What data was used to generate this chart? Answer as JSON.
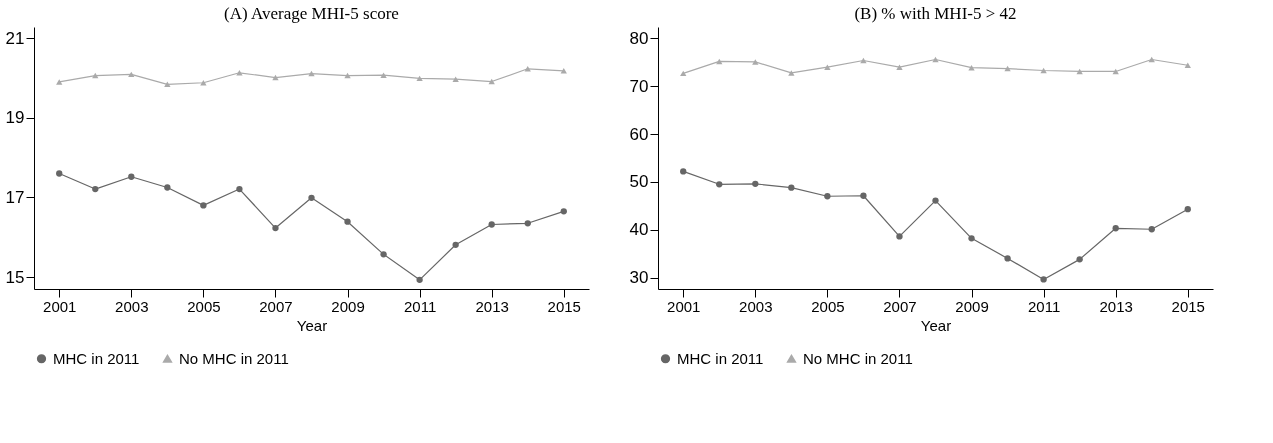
{
  "chart_data": [
    {
      "type": "line",
      "title": "(A) Average MHI-5 score",
      "xlabel": "Year",
      "x": [
        2001,
        2002,
        2003,
        2004,
        2005,
        2006,
        2007,
        2008,
        2009,
        2010,
        2011,
        2012,
        2013,
        2014,
        2015
      ],
      "xlim": [
        2000.3,
        2015.7
      ],
      "xticks": [
        2001,
        2003,
        2005,
        2007,
        2009,
        2011,
        2013,
        2015
      ],
      "ylim": [
        14.7,
        21.28
      ],
      "yticks": [
        15,
        17,
        19,
        21
      ],
      "grid": false,
      "legend": "bottom",
      "line_style": "solid",
      "series": [
        {
          "name": "MHC in 2011",
          "color": "#666666",
          "marker": "circle",
          "values": [
            17.6,
            17.21,
            17.52,
            17.25,
            16.8,
            17.21,
            16.23,
            16.99,
            16.39,
            15.57,
            14.93,
            15.81,
            16.32,
            16.35,
            16.65
          ]
        },
        {
          "name": "No MHC in 2011",
          "color": "#aaaaaa",
          "marker": "triangle",
          "values": [
            19.9,
            20.06,
            20.09,
            19.84,
            19.88,
            20.13,
            20.01,
            20.11,
            20.06,
            20.07,
            19.99,
            19.97,
            19.91,
            20.23,
            20.18
          ]
        }
      ]
    },
    {
      "type": "line",
      "title": "(B) % with MHI-5 > 42",
      "xlabel": "Year",
      "x": [
        2001,
        2002,
        2003,
        2004,
        2005,
        2006,
        2007,
        2008,
        2009,
        2010,
        2011,
        2012,
        2013,
        2014,
        2015
      ],
      "xlim": [
        2000.3,
        2015.7
      ],
      "xticks": [
        2001,
        2003,
        2005,
        2007,
        2009,
        2011,
        2013,
        2015
      ],
      "ylim": [
        27.6,
        82.4
      ],
      "yticks": [
        30,
        40,
        50,
        60,
        70,
        80
      ],
      "grid": false,
      "legend": "bottom",
      "line_style": "solid",
      "series": [
        {
          "name": "MHC in 2011",
          "color": "#666666",
          "marker": "circle",
          "values": [
            52.2,
            49.5,
            49.6,
            48.8,
            47.0,
            47.1,
            38.6,
            46.1,
            38.2,
            34.0,
            29.6,
            33.8,
            40.3,
            40.1,
            44.3
          ]
        },
        {
          "name": "No MHC in 2011",
          "color": "#aaaaaa",
          "marker": "triangle",
          "values": [
            72.7,
            75.2,
            75.1,
            72.8,
            74.0,
            75.4,
            74.0,
            75.6,
            73.9,
            73.7,
            73.3,
            73.1,
            73.1,
            75.6,
            74.4
          ]
        }
      ]
    }
  ]
}
